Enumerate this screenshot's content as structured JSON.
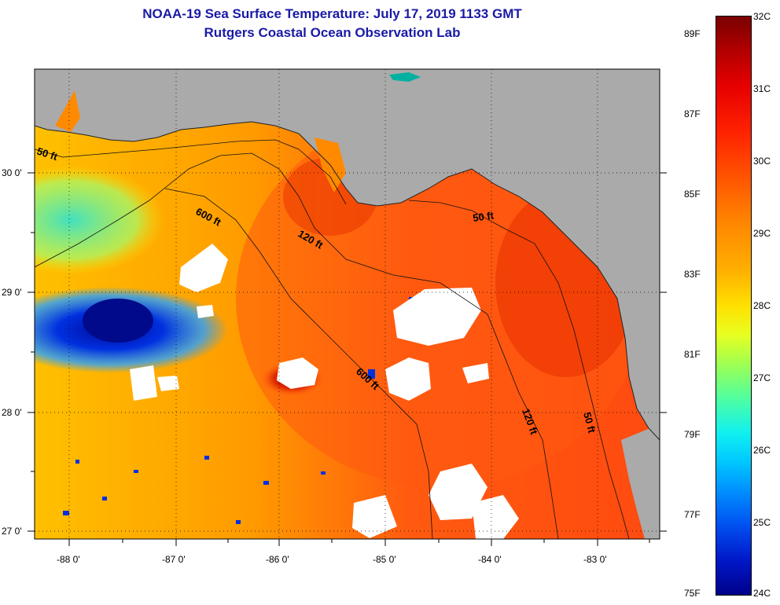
{
  "title": "NOAA-19 Sea Surface Temperature:  July 17, 2019 1133 GMT",
  "subtitle": "Rutgers Coastal Ocean Observation Lab",
  "map": {
    "lon_ticks": [
      "-88 0'",
      "-87 0'",
      "-86 0'",
      "-85 0'",
      "-84 0'",
      "-83 0'"
    ],
    "lat_ticks": [
      "30 0'",
      "29 0'",
      "28 0'",
      "27 0'"
    ],
    "contour_labels": [
      "50 ft",
      "600 ft",
      "120 ft",
      "50 ft",
      "600 ft",
      "120 ft",
      "50 ft"
    ],
    "colors": {
      "land": "#aaaaaa",
      "cloud": "#ffffff",
      "warm": "#ff5a10",
      "hot": "#d81a00",
      "mild": "#ffb000",
      "cool": "#2aa0ff",
      "cold": "#0018c8"
    }
  },
  "colorbar": {
    "fahrenheit": [
      "89F",
      "87F",
      "85F",
      "83F",
      "81F",
      "79F",
      "77F",
      "75F"
    ],
    "celsius": [
      "32C",
      "31C",
      "30C",
      "29C",
      "28C",
      "27C",
      "26C",
      "25C",
      "24C"
    ],
    "range_c": [
      24,
      32
    ],
    "range_f": [
      75,
      89.6
    ]
  }
}
